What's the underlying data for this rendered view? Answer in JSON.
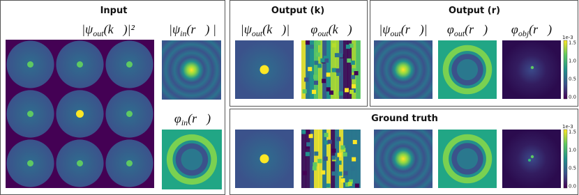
{
  "panels": {
    "input": {
      "title": "Input",
      "labels": [
        {
          "pre": "|ψ",
          "sub": "out",
          "post": "(k⃗)|²"
        },
        {
          "pre": "|ψ",
          "sub": "in",
          "post": "(r⃗) |"
        },
        {
          "pre": "φ",
          "sub": "in",
          "post": "(r⃗)"
        }
      ]
    },
    "output_k": {
      "title": "Output (k)",
      "labels": [
        {
          "pre": "|ψ",
          "sub": "out",
          "post": "(k⃗)|"
        },
        {
          "pre": "φ",
          "sub": "out",
          "post": "(k⃗)"
        }
      ]
    },
    "output_r": {
      "title": "Output (r)",
      "labels": [
        {
          "pre": "|ψ",
          "sub": "out",
          "post": "(r⃗)|"
        },
        {
          "pre": "φ",
          "sub": "out",
          "post": "(r⃗)"
        },
        {
          "pre": "φ",
          "sub": "obj",
          "post": "(r⃗)"
        }
      ]
    },
    "ground_truth": {
      "title": "Ground truth"
    }
  },
  "colorbars": [
    {
      "scale": "1e-3",
      "ticks": [
        "1.5",
        "1.0",
        "0.5",
        "0.0"
      ]
    },
    {
      "scale": "1e-3",
      "ticks": [
        "1.5",
        "1.0",
        "0.5",
        "0.0"
      ]
    }
  ]
}
